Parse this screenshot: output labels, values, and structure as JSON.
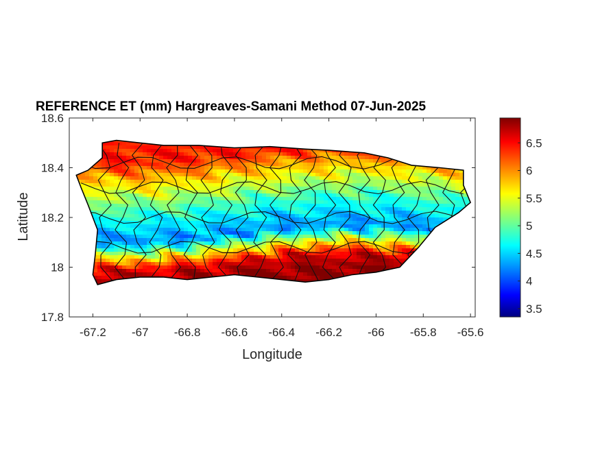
{
  "chart_data": {
    "type": "heatmap",
    "title": "REFERENCE ET (mm) Hargreaves-Samani Method  07-Jun-2025",
    "xlabel": "Longitude",
    "ylabel": "Latitude",
    "xlim": [
      -67.3,
      -65.58
    ],
    "ylim": [
      17.8,
      18.6
    ],
    "xticks": [
      -67.2,
      -67,
      -66.8,
      -66.6,
      -66.4,
      -66.2,
      -66,
      -65.8,
      -65.6
    ],
    "xtick_labels": [
      "-67.2",
      "-67",
      "-66.8",
      "-66.6",
      "-66.4",
      "-66.2",
      "-66",
      "-65.8",
      "-65.6"
    ],
    "yticks": [
      17.8,
      18,
      18.2,
      18.4,
      18.6
    ],
    "ytick_labels": [
      "17.8",
      "18",
      "18.2",
      "18.4",
      "18.6"
    ],
    "colorbar": {
      "colormap": "jet",
      "range": [
        3.35,
        6.95
      ],
      "ticks": [
        3.5,
        4,
        4.5,
        5,
        5.5,
        6,
        6.5
      ],
      "tick_labels": [
        "3.5",
        "4",
        "4.5",
        "5",
        "5.5",
        "6",
        "6.5"
      ]
    },
    "island_outline": [
      [
        -67.27,
        18.37
      ],
      [
        -67.22,
        18.39
      ],
      [
        -67.16,
        18.44
      ],
      [
        -67.16,
        18.5
      ],
      [
        -67.1,
        18.51
      ],
      [
        -67.0,
        18.5
      ],
      [
        -66.9,
        18.49
      ],
      [
        -66.75,
        18.49
      ],
      [
        -66.6,
        18.48
      ],
      [
        -66.45,
        18.485
      ],
      [
        -66.3,
        18.475
      ],
      [
        -66.2,
        18.47
      ],
      [
        -66.05,
        18.46
      ],
      [
        -65.95,
        18.44
      ],
      [
        -65.85,
        18.41
      ],
      [
        -65.73,
        18.4
      ],
      [
        -65.63,
        18.39
      ],
      [
        -65.63,
        18.33
      ],
      [
        -65.6,
        18.26
      ],
      [
        -65.65,
        18.22
      ],
      [
        -65.75,
        18.16
      ],
      [
        -65.82,
        18.08
      ],
      [
        -65.9,
        18.0
      ],
      [
        -66.0,
        17.98
      ],
      [
        -66.1,
        17.97
      ],
      [
        -66.2,
        17.95
      ],
      [
        -66.3,
        17.94
      ],
      [
        -66.4,
        17.95
      ],
      [
        -66.5,
        17.96
      ],
      [
        -66.6,
        17.97
      ],
      [
        -66.7,
        17.96
      ],
      [
        -66.8,
        17.95
      ],
      [
        -66.9,
        17.96
      ],
      [
        -67.0,
        17.96
      ],
      [
        -67.1,
        17.95
      ],
      [
        -67.18,
        17.93
      ],
      [
        -67.2,
        17.97
      ],
      [
        -67.19,
        18.05
      ],
      [
        -67.18,
        18.15
      ],
      [
        -67.22,
        18.25
      ],
      [
        -67.25,
        18.32
      ]
    ],
    "et_bands": [
      {
        "lat": 18.46,
        "value": 6.4
      },
      {
        "lat": 18.4,
        "value": 5.9
      },
      {
        "lat": 18.33,
        "value": 5.4
      },
      {
        "lat": 18.26,
        "value": 4.9
      },
      {
        "lat": 18.2,
        "value": 4.6
      },
      {
        "lat": 18.14,
        "value": 4.3
      },
      {
        "lat": 18.08,
        "value": 5.6
      },
      {
        "lat": 18.03,
        "value": 6.6
      },
      {
        "lat": 17.97,
        "value": 6.9
      }
    ]
  }
}
